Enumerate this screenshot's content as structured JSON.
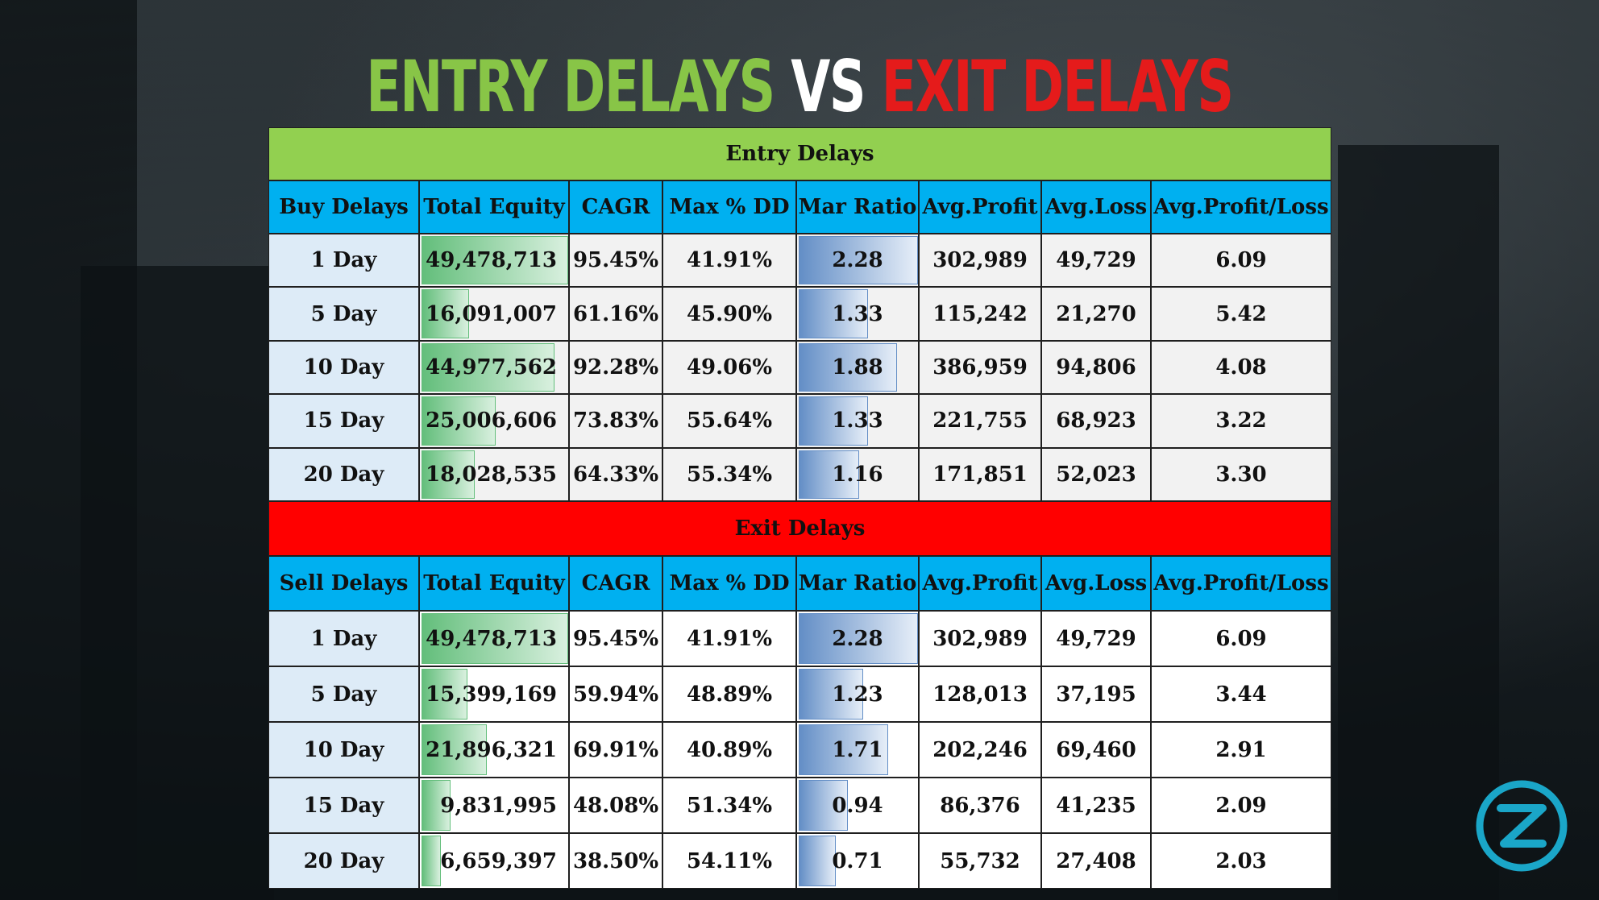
{
  "title": {
    "part1": "ENTRY DELAYS",
    "part2": "VS",
    "part3": "EXIT DELAYS"
  },
  "colors": {
    "green": "#92d050",
    "red": "#ff0000",
    "header": "#00b0f0",
    "first_col": "#ddebf7"
  },
  "chart_data": {
    "type": "table",
    "columns_entry": [
      "Buy Delays",
      "Total Equity",
      "CAGR",
      "Max % DD",
      "Mar Ratio",
      "Avg.Profit",
      "Avg.Loss",
      "Avg.Profit/Loss"
    ],
    "columns_exit": [
      "Sell Delays",
      "Total Equity",
      "CAGR",
      "Max % DD",
      "Mar Ratio",
      "Avg.Profit",
      "Avg.Loss",
      "Avg.Profit/Loss"
    ],
    "entry_title": "Entry Delays",
    "exit_title": "Exit Delays",
    "entry_rows": [
      {
        "delay": "1 Day",
        "equity": "49,478,713",
        "equity_num": 49478713,
        "cagr": "95.45%",
        "maxdd": "41.91%",
        "mar": "2.28",
        "mar_num": 2.28,
        "avg_profit": "302,989",
        "avg_loss": "49,729",
        "ratio": "6.09"
      },
      {
        "delay": "5 Day",
        "equity": "16,091,007",
        "equity_num": 16091007,
        "cagr": "61.16%",
        "maxdd": "45.90%",
        "mar": "1.33",
        "mar_num": 1.33,
        "avg_profit": "115,242",
        "avg_loss": "21,270",
        "ratio": "5.42"
      },
      {
        "delay": "10 Day",
        "equity": "44,977,562",
        "equity_num": 44977562,
        "cagr": "92.28%",
        "maxdd": "49.06%",
        "mar": "1.88",
        "mar_num": 1.88,
        "avg_profit": "386,959",
        "avg_loss": "94,806",
        "ratio": "4.08"
      },
      {
        "delay": "15 Day",
        "equity": "25,006,606",
        "equity_num": 25006606,
        "cagr": "73.83%",
        "maxdd": "55.64%",
        "mar": "1.33",
        "mar_num": 1.33,
        "avg_profit": "221,755",
        "avg_loss": "68,923",
        "ratio": "3.22"
      },
      {
        "delay": "20 Day",
        "equity": "18,028,535",
        "equity_num": 18028535,
        "cagr": "64.33%",
        "maxdd": "55.34%",
        "mar": "1.16",
        "mar_num": 1.16,
        "avg_profit": "171,851",
        "avg_loss": "52,023",
        "ratio": "3.30"
      }
    ],
    "exit_rows": [
      {
        "delay": "1 Day",
        "equity": "49,478,713",
        "equity_num": 49478713,
        "cagr": "95.45%",
        "maxdd": "41.91%",
        "mar": "2.28",
        "mar_num": 2.28,
        "avg_profit": "302,989",
        "avg_loss": "49,729",
        "ratio": "6.09"
      },
      {
        "delay": "5 Day",
        "equity": "15,399,169",
        "equity_num": 15399169,
        "cagr": "59.94%",
        "maxdd": "48.89%",
        "mar": "1.23",
        "mar_num": 1.23,
        "avg_profit": "128,013",
        "avg_loss": "37,195",
        "ratio": "3.44"
      },
      {
        "delay": "10 Day",
        "equity": "21,896,321",
        "equity_num": 21896321,
        "cagr": "69.91%",
        "maxdd": "40.89%",
        "mar": "1.71",
        "mar_num": 1.71,
        "avg_profit": "202,246",
        "avg_loss": "69,460",
        "ratio": "2.91"
      },
      {
        "delay": "15 Day",
        "equity": "9,831,995",
        "equity_num": 9831995,
        "cagr": "48.08%",
        "maxdd": "51.34%",
        "mar": "0.94",
        "mar_num": 0.94,
        "avg_profit": "86,376",
        "avg_loss": "41,235",
        "ratio": "2.09"
      },
      {
        "delay": "20 Day",
        "equity": "6,659,397",
        "equity_num": 6659397,
        "cagr": "38.50%",
        "maxdd": "54.11%",
        "mar": "0.71",
        "mar_num": 0.71,
        "avg_profit": "55,732",
        "avg_loss": "27,408",
        "ratio": "2.03"
      }
    ]
  }
}
